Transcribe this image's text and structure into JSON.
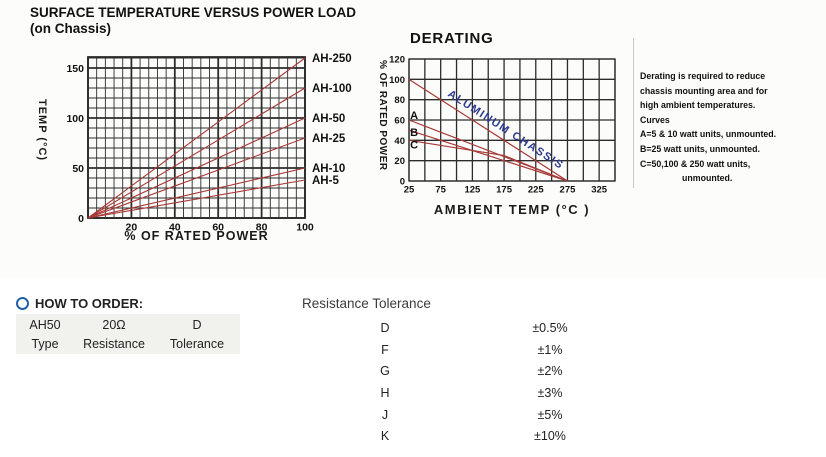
{
  "colors": {
    "chart_line_red": "#a83a38",
    "grid_black": "#2c2c2c",
    "chassis_blue": "#2b3a8c",
    "ring_blue": "#2062a8",
    "panel_gray": "#f1f1ee"
  },
  "chart_data": [
    {
      "id": "surface-temp",
      "type": "line",
      "title": "SURFACE TEMPERATURE VERSUS POWER LOAD",
      "subtitle": "(on Chassis)",
      "xlabel": "% OF RATED POWER",
      "ylabel": "TEMP (°C)",
      "xlim": [
        0,
        100
      ],
      "ylim": [
        0,
        161
      ],
      "x_ticks": [
        20,
        40,
        60,
        80,
        100
      ],
      "y_ticks": [
        0,
        50,
        100,
        150
      ],
      "grid": {
        "x_step": 4,
        "y_step": 10,
        "x_major": 20,
        "y_major": 50,
        "on": true
      },
      "line_color": "#a83a38",
      "label_series": true,
      "series": [
        {
          "name": "AH-250",
          "points": [
            [
              0,
              0
            ],
            [
              100,
              160
            ]
          ]
        },
        {
          "name": "AH-100",
          "points": [
            [
              0,
              0
            ],
            [
              100,
              130
            ]
          ]
        },
        {
          "name": "AH-50",
          "points": [
            [
              0,
              0
            ],
            [
              100,
              100
            ]
          ]
        },
        {
          "name": "AH-25",
          "points": [
            [
              0,
              0
            ],
            [
              100,
              80
            ]
          ]
        },
        {
          "name": "AH-10",
          "points": [
            [
              0,
              0
            ],
            [
              100,
              50
            ]
          ]
        },
        {
          "name": "AH-5",
          "points": [
            [
              0,
              0
            ],
            [
              100,
              38
            ]
          ]
        }
      ]
    },
    {
      "id": "derating",
      "type": "line",
      "title": "DERATING",
      "xlabel": "AMBIENT TEMP (°C )",
      "ylabel": "% OF RATED POWER",
      "xlim": [
        25,
        350
      ],
      "ylim": [
        0,
        120
      ],
      "x_ticks": [
        25,
        75,
        125,
        175,
        225,
        275,
        325
      ],
      "y_ticks": [
        0,
        20,
        40,
        60,
        80,
        100,
        120
      ],
      "grid": {
        "x_step": 25,
        "y_step": 20,
        "x_major": 25,
        "y_major": 20,
        "on": true
      },
      "line_color": "#a83a38",
      "label_series": false,
      "series": [
        {
          "name": "ALUMINUM CHASSIS",
          "points": [
            [
              25,
              100
            ],
            [
              225,
              20
            ],
            [
              275,
              0
            ]
          ]
        },
        {
          "name": "A",
          "points": [
            [
              25,
              60
            ],
            [
              275,
              0
            ]
          ]
        },
        {
          "name": "B",
          "points": [
            [
              25,
              50
            ],
            [
              275,
              0
            ]
          ]
        },
        {
          "name": "C",
          "points": [
            [
              25,
              40
            ],
            [
              175,
              25
            ],
            [
              275,
              0
            ]
          ]
        }
      ],
      "annotations": [
        {
          "text": "A",
          "x": 33,
          "y": 65
        },
        {
          "text": "B",
          "x": 33,
          "y": 48
        },
        {
          "text": "C",
          "x": 33,
          "y": 36
        }
      ]
    }
  ],
  "derating_notes": {
    "lines": [
      "Derating is required to reduce",
      "chassis mounting area and for",
      "high ambient temperatures.",
      "Curves",
      "A=5 & 10 watt units, unmounted.",
      "B=25 watt units, unmounted.",
      "C=50,100 & 250 watt units,",
      "unmounted."
    ]
  },
  "how_to_order": {
    "heading": "HOW TO ORDER:",
    "example_type": "AH50",
    "example_resistance": "20Ω",
    "example_tolerance": "D",
    "label_type": "Type",
    "label_resistance": "Resistance",
    "label_tolerance": "Tolerance"
  },
  "resistance_tolerance": {
    "heading": "Resistance Tolerance",
    "rows": [
      {
        "code": "D",
        "value": "±0.5%"
      },
      {
        "code": "F",
        "value": "±1%"
      },
      {
        "code": "G",
        "value": "±2%"
      },
      {
        "code": "H",
        "value": "±3%"
      },
      {
        "code": "J",
        "value": "±5%"
      },
      {
        "code": "K",
        "value": "±10%"
      }
    ]
  }
}
